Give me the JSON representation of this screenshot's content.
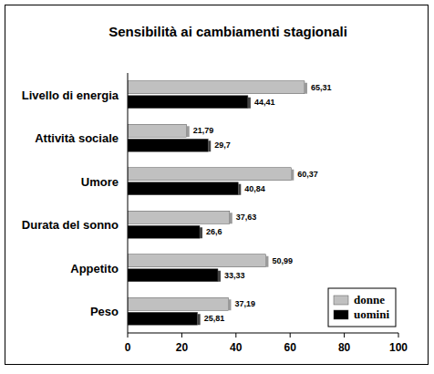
{
  "chart_data": {
    "type": "bar",
    "orientation": "horizontal",
    "title": "Sensibilità ai cambiamenti stagionali",
    "categories": [
      "Livello di energia",
      "Attività sociale",
      "Umore",
      "Durata del sonno",
      "Appetito",
      "Peso"
    ],
    "series": [
      {
        "name": "donne",
        "color": "#c0c0c0",
        "values": [
          65.31,
          21.79,
          60.37,
          37.63,
          50.99,
          37.19
        ],
        "value_labels": [
          "65,31",
          "21,79",
          "60,37",
          "37,63",
          "50,99",
          "37,19"
        ]
      },
      {
        "name": "uomini",
        "color": "#000000",
        "values": [
          44.41,
          29.7,
          40.84,
          26.6,
          33.33,
          25.81
        ],
        "value_labels": [
          "44,41",
          "29,7",
          "40,84",
          "26,6",
          "33,33",
          "25,81"
        ]
      }
    ],
    "xlim": [
      0,
      100
    ],
    "xticks": [
      0,
      20,
      40,
      60,
      80,
      100
    ],
    "grid": false,
    "legend": "bottom-right",
    "data_labels": true
  }
}
